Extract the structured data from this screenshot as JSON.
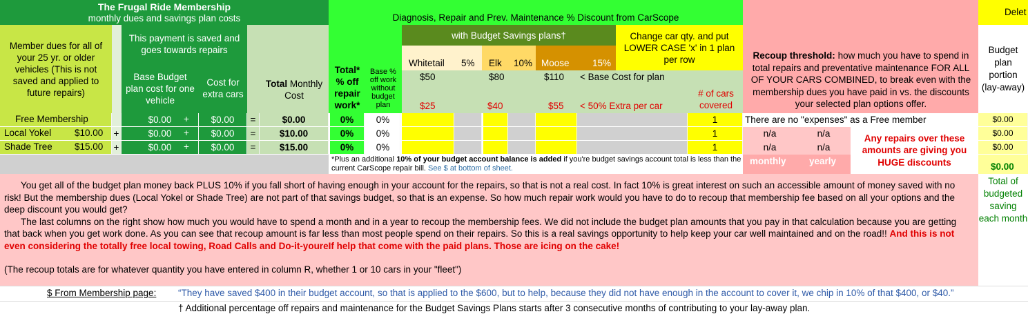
{
  "header": {
    "title": "The Frugal Ride Membership",
    "subtitle": "monthly dues and savings plan costs",
    "discount_title": "Diagnosis, Repair and Prev. Maintenance % Discount from CarScope",
    "delete_label": "Delet"
  },
  "columns": {
    "member_dues": "Member dues for all of your 25 yr. or older vehicles (This is not saved and applied to future repairs)",
    "saved_note": "This payment is saved and goes towards repairs",
    "base_budget": "Base Budget plan cost for one vehicle",
    "cost_extra": "Cost for extra cars",
    "total_bold": "Total",
    "total_rest": " Monthly Cost",
    "total_pct": "Total* % off repair work*",
    "base_pct": "Base % off work without budget plan",
    "budget_plans": "with Budget Savings plans†",
    "change_qty": "Change car qty. and put LOWER CASE 'x' in 1 plan per row",
    "num_cars": "# of cars covered",
    "recoup_bold": "Recoup threshold:",
    "recoup_rest": " how much you have to spend in total repairs and preventative maintenance FOR ALL OF YOUR CARS COMBINED, to break even with the membership dues you have paid in vs. the discounts your selected plan options offer.",
    "budget_portion": "Budget plan portion (lay-away)"
  },
  "plans": {
    "whitetail": "Whitetail",
    "whitetail_pct": "5%",
    "elk": "Elk",
    "elk_pct": "10%",
    "moose": "Moose",
    "moose_pct": "15%",
    "whitetail_base": "$50",
    "elk_base": "$80",
    "moose_base": "$110",
    "base_cost_note": "< Base Cost for plan",
    "whitetail_extra": "$25",
    "elk_extra": "$40",
    "moose_extra": "$55",
    "extra_note": "< 50%  Extra per car"
  },
  "rows": [
    {
      "name": "Free Membership",
      "dues": "",
      "plus1": "",
      "base": "$0.00",
      "plus2": "+",
      "extra": "$0.00",
      "eq": "=",
      "total": "$0.00",
      "total_pct": "0%",
      "base_pct": "0%",
      "cars": "1",
      "recoup_monthly": "There are no \"expenses\" as a Free member",
      "recoup_yearly": "",
      "budget": "$0.00"
    },
    {
      "name": "Local Yokel",
      "dues": "$10.00",
      "plus1": "+",
      "base": "$0.00",
      "plus2": "+",
      "extra": "$0.00",
      "eq": "=",
      "total": "$10.00",
      "total_pct": "0%",
      "base_pct": "0%",
      "cars": "1",
      "recoup_monthly": "n/a",
      "recoup_yearly": "n/a",
      "budget": "$0.00"
    },
    {
      "name": "Shade Tree",
      "dues": "$15.00",
      "plus1": "+",
      "base": "$0.00",
      "plus2": "+",
      "extra": "$0.00",
      "eq": "=",
      "total": "$15.00",
      "total_pct": "0%",
      "base_pct": "0%",
      "cars": "1",
      "recoup_monthly": "n/a",
      "recoup_yearly": "n/a",
      "budget": "$0.00"
    }
  ],
  "footnote": {
    "pre": "*Plus an additional ",
    "bold": "10% of your budget account balance is added",
    "post": " if you're budget savings account total is less than the current CarScope repair bill.",
    "link": "See $ at bottom of sheet."
  },
  "recoup": {
    "monthly_label": "monthly",
    "yearly_label": "yearly",
    "huge_discounts": "Any repairs over these amounts are giving you HUGE discounts"
  },
  "budget_total": {
    "value": "$0.00",
    "label": "Total of budgeted saving each month"
  },
  "paragraphs": {
    "p1": "You get all of the budget plan money back PLUS 10% if you fall short of having enough in your account for the repairs, so that is not a real cost. In fact 10% is great interest on such an accessible amount of money saved with no risk!  But the membership dues (Local Yokel or Shade Tree) are not part of that savings budget, so that is an expense. So how much repair work would you have to do to recoup that membership fee based on all your options and the deep discount you would get?",
    "p2": "The last columns on the right show how much you would have to spend a month and in a year to recoup the membership fees. We did not include the budget plan amounts that you pay in that calculation because you are getting that back when you get work done. As you can see that recoup amount is far less than most people spend on their repairs. So this is a real savings opportunity to help keep your car well maintained and on the road!!",
    "p2_red": "And this is not even considering the totally free local towing, Road Calls and Do-it-youreIf help that come with the paid plans. Those are icing on the cake!",
    "p3": "(The recoup totals are for whatever quantity you have entered in column R, whether 1 or 10 cars in your \"fleet\")"
  },
  "bottom": {
    "from_membership": "$  From Membership page:",
    "quote": "“They have saved $400 in their budget account, so that is applied to the $600, but to help, because they did not have enough in the account to cover it, we chip in 10% of that $400, or $40.”",
    "dagger_note": "† Additional percentage off repairs and maintenance for the Budget Savings Plans starts after 3 consecutive months of contributing to your lay-away plan."
  },
  "colors": {
    "dark_green": "#1e9a3c",
    "lime": "#c8e646",
    "light_green": "#c6e0b4",
    "bright_green": "#33ff33",
    "olive": "#5a8a1e",
    "cream": "#fff2cc",
    "gold": "#ffd966",
    "orange": "#d59100",
    "yellow": "#ffff00",
    "gray": "#d0d0d0",
    "pink": "#ffc0c0",
    "light_yellow": "#ffff99"
  }
}
